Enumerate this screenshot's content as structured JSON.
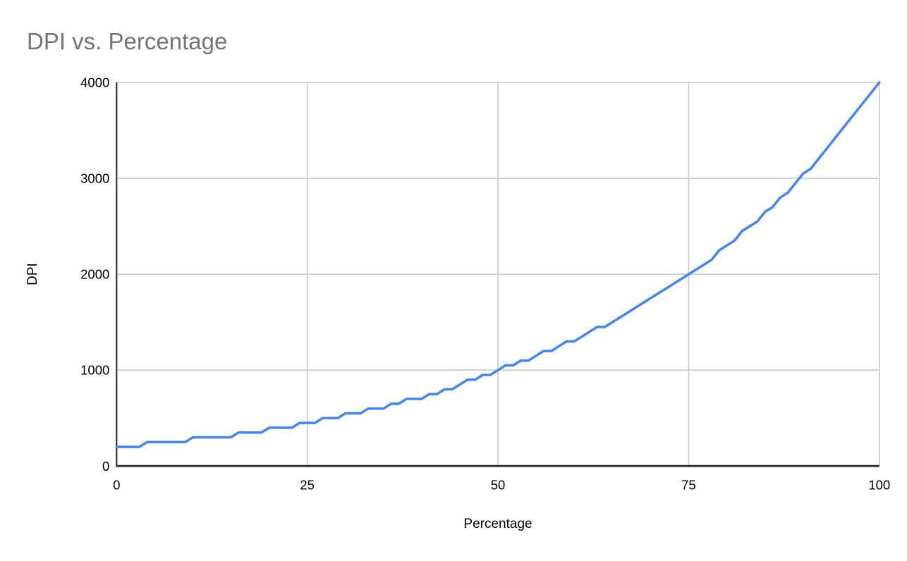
{
  "chart": {
    "title": "DPI vs. Percentage",
    "x_axis_title": "Percentage",
    "y_axis_title": "DPI",
    "colors": {
      "title": "#757575",
      "text": "#000000",
      "grid": "#c9c9c9",
      "axis": "#333333",
      "line": "#4285f4",
      "background": "#ffffff"
    }
  },
  "chart_data": {
    "type": "line",
    "title": "DPI vs. Percentage",
    "xlabel": "Percentage",
    "ylabel": "DPI",
    "xlim": [
      0,
      100
    ],
    "ylim": [
      0,
      4000
    ],
    "x_ticks": [
      0,
      25,
      50,
      75,
      100
    ],
    "y_ticks": [
      0,
      1000,
      2000,
      3000,
      4000
    ],
    "grid": true,
    "legend": false,
    "series": [
      {
        "name": "DPI",
        "x": [
          0,
          1,
          2,
          3,
          4,
          5,
          6,
          7,
          8,
          9,
          10,
          11,
          12,
          13,
          14,
          15,
          16,
          17,
          18,
          19,
          20,
          21,
          22,
          23,
          24,
          25,
          26,
          27,
          28,
          29,
          30,
          31,
          32,
          33,
          34,
          35,
          36,
          37,
          38,
          39,
          40,
          41,
          42,
          43,
          44,
          45,
          46,
          47,
          48,
          49,
          50,
          51,
          52,
          53,
          54,
          55,
          56,
          57,
          58,
          59,
          60,
          61,
          62,
          63,
          64,
          65,
          66,
          67,
          68,
          69,
          70,
          71,
          72,
          73,
          74,
          75,
          76,
          77,
          78,
          79,
          80,
          81,
          82,
          83,
          84,
          85,
          86,
          87,
          88,
          89,
          90,
          91,
          92,
          93,
          94,
          95,
          96,
          97,
          98,
          99,
          100
        ],
        "values": [
          200,
          200,
          200,
          200,
          250,
          250,
          250,
          250,
          250,
          250,
          300,
          300,
          300,
          300,
          300,
          300,
          350,
          350,
          350,
          350,
          400,
          400,
          400,
          400,
          450,
          450,
          450,
          500,
          500,
          500,
          550,
          550,
          550,
          600,
          600,
          600,
          650,
          650,
          700,
          700,
          700,
          750,
          750,
          800,
          800,
          850,
          900,
          900,
          950,
          950,
          1000,
          1050,
          1050,
          1100,
          1100,
          1150,
          1200,
          1200,
          1250,
          1300,
          1300,
          1350,
          1400,
          1450,
          1450,
          1500,
          1550,
          1600,
          1650,
          1700,
          1750,
          1800,
          1850,
          1900,
          1950,
          2000,
          2050,
          2100,
          2150,
          2250,
          2300,
          2350,
          2450,
          2500,
          2550,
          2650,
          2700,
          2800,
          2850,
          2950,
          3050,
          3100,
          3200,
          3300,
          3400,
          3500,
          3600,
          3700,
          3800,
          3900,
          4000
        ]
      }
    ]
  }
}
